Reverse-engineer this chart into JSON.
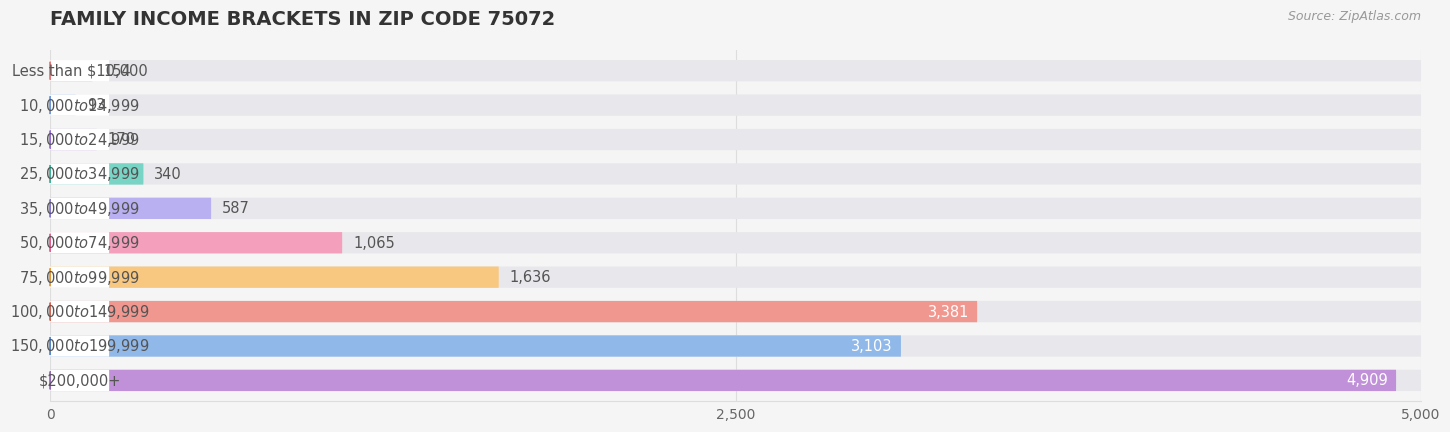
{
  "title": "Family Income Brackets in Zip Code 75072",
  "source": "Source: ZipAtlas.com",
  "categories": [
    "Less than $10,000",
    "$10,000 to $14,999",
    "$15,000 to $24,999",
    "$25,000 to $34,999",
    "$35,000 to $49,999",
    "$50,000 to $74,999",
    "$75,000 to $99,999",
    "$100,000 to $149,999",
    "$150,000 to $199,999",
    "$200,000+"
  ],
  "values": [
    154,
    93,
    170,
    340,
    587,
    1065,
    1636,
    3381,
    3103,
    4909
  ],
  "bar_colors": [
    "#f4a8a8",
    "#a8c4f0",
    "#c8a8f0",
    "#78d4c4",
    "#b8b0f0",
    "#f4a0bc",
    "#f8c880",
    "#f09890",
    "#90b8e8",
    "#c090d8"
  ],
  "dot_colors": [
    "#e87878",
    "#7098d8",
    "#9870d0",
    "#40b098",
    "#8878d0",
    "#e06090",
    "#e09838",
    "#d06858",
    "#5888c8",
    "#9868b8"
  ],
  "bg_bar_color": "#e8e8ec",
  "background_color": "#f5f5f5",
  "pill_color": "#ffffff",
  "label_text_color": "#555555",
  "value_text_color_outside": "#555555",
  "value_text_color_inside": "#ffffff",
  "title_color": "#333333",
  "source_color": "#999999",
  "grid_color": "#dddddd",
  "xlim": [
    0,
    5000
  ],
  "xticks": [
    0,
    2500,
    5000
  ],
  "title_fontsize": 14,
  "label_fontsize": 10.5,
  "value_fontsize": 10.5,
  "source_fontsize": 9
}
